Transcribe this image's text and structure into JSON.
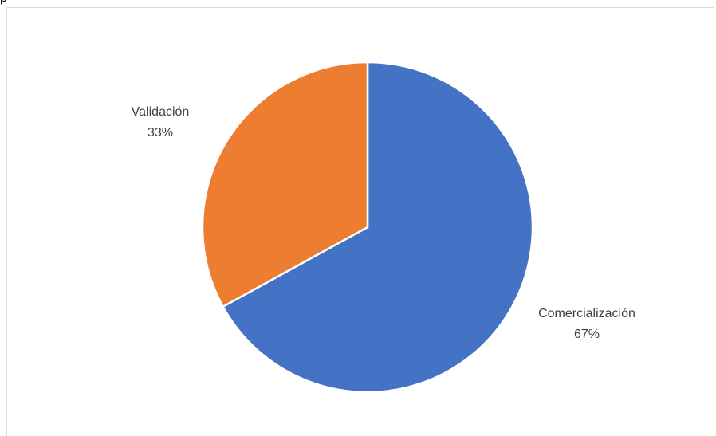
{
  "page": {
    "header_text": "p"
  },
  "colors": {
    "comercializacion": "#4472C4",
    "validacion": "#ED7D31",
    "label_text": "#404040",
    "border": "#D9D9D9"
  },
  "chart_data": {
    "type": "pie",
    "title": "",
    "start_angle_deg": 0,
    "direction": "clockwise",
    "slices": [
      {
        "name": "Comercialización",
        "value": 67,
        "label": "67%",
        "color": "#4472C4"
      },
      {
        "name": "Validación",
        "value": 33,
        "label": "33%",
        "color": "#ED7D31"
      }
    ],
    "legend": "none",
    "data_labels": "outside"
  }
}
